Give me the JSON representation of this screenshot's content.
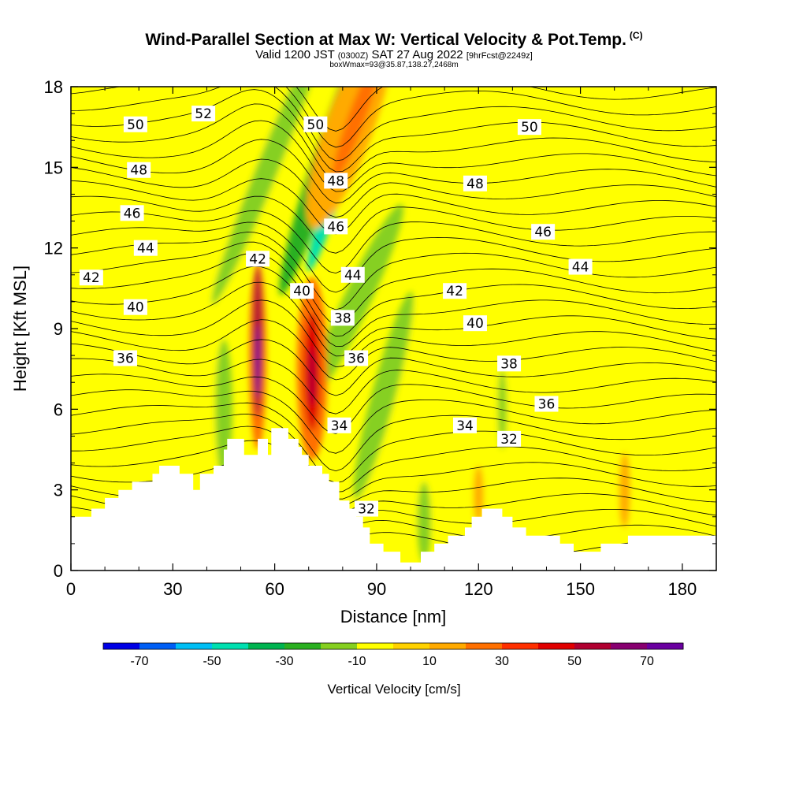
{
  "title": {
    "main": "Wind-Parallel Section at Max W: Vertical Velocity & Pot.Temp.",
    "copyright": "(C)",
    "valid_prefix": "Valid 1200 JST",
    "valid_utc": "(0300Z)",
    "valid_date": "SAT 27 Aug 2022",
    "forecast": "[9hrFcst@2249z]",
    "box_info": "boxWmax=93@35.87,138.27,2468m"
  },
  "chart_data": {
    "type": "heatmap",
    "xlabel": "Distance [nm]",
    "ylabel": "Height [Kft MSL]",
    "xlim": [
      0,
      190
    ],
    "ylim": [
      0,
      18
    ],
    "x_ticks": [
      0,
      30,
      60,
      90,
      120,
      150,
      180
    ],
    "y_ticks": [
      0,
      3,
      6,
      9,
      12,
      15,
      18
    ],
    "colorbar": {
      "label": "Vertical Velocity [cm/s]",
      "tick_labels": [
        "-70",
        "-50",
        "-30",
        "-10",
        "10",
        "30",
        "50",
        "70"
      ],
      "tick_values": [
        -70,
        -50,
        -30,
        -10,
        10,
        30,
        50,
        70
      ],
      "range": [
        -80,
        80
      ],
      "colors": [
        "#0000e6",
        "#005ff5",
        "#00bff5",
        "#00e0b0",
        "#00b450",
        "#2ab020",
        "#86d020",
        "#ffff00",
        "#ffd200",
        "#ffaa00",
        "#ff7000",
        "#ff3000",
        "#e00000",
        "#b00030",
        "#880070",
        "#6a00a0"
      ]
    },
    "contour_labels": [
      {
        "text": "52",
        "x": 39,
        "y": 17.0
      },
      {
        "text": "50",
        "x": 19,
        "y": 16.6
      },
      {
        "text": "50",
        "x": 72,
        "y": 16.6
      },
      {
        "text": "50",
        "x": 135,
        "y": 16.5
      },
      {
        "text": "48",
        "x": 20,
        "y": 14.9
      },
      {
        "text": "48",
        "x": 78,
        "y": 14.5
      },
      {
        "text": "48",
        "x": 119,
        "y": 14.4
      },
      {
        "text": "46",
        "x": 18,
        "y": 13.3
      },
      {
        "text": "46",
        "x": 78,
        "y": 12.8
      },
      {
        "text": "46",
        "x": 139,
        "y": 12.6
      },
      {
        "text": "44",
        "x": 22,
        "y": 12.0
      },
      {
        "text": "44",
        "x": 83,
        "y": 11.0
      },
      {
        "text": "44",
        "x": 150,
        "y": 11.3
      },
      {
        "text": "42",
        "x": 6,
        "y": 10.9
      },
      {
        "text": "42",
        "x": 55,
        "y": 11.6
      },
      {
        "text": "42",
        "x": 113,
        "y": 10.4
      },
      {
        "text": "40",
        "x": 19,
        "y": 9.8
      },
      {
        "text": "40",
        "x": 68,
        "y": 10.4
      },
      {
        "text": "40",
        "x": 119,
        "y": 9.2
      },
      {
        "text": "38",
        "x": 80,
        "y": 9.4
      },
      {
        "text": "38",
        "x": 129,
        "y": 7.7
      },
      {
        "text": "36",
        "x": 16,
        "y": 7.9
      },
      {
        "text": "36",
        "x": 84,
        "y": 7.9
      },
      {
        "text": "36",
        "x": 140,
        "y": 6.2
      },
      {
        "text": "34",
        "x": 79,
        "y": 5.4
      },
      {
        "text": "34",
        "x": 116,
        "y": 5.4
      },
      {
        "text": "32",
        "x": 129,
        "y": 4.9
      },
      {
        "text": "32",
        "x": 87,
        "y": 2.3
      }
    ],
    "terrain_height": [
      [
        0,
        2.0
      ],
      [
        6,
        2.0
      ],
      [
        6,
        2.3
      ],
      [
        10,
        2.3
      ],
      [
        10,
        2.7
      ],
      [
        14,
        2.7
      ],
      [
        14,
        3.0
      ],
      [
        18,
        3.0
      ],
      [
        18,
        3.3
      ],
      [
        24,
        3.3
      ],
      [
        24,
        3.6
      ],
      [
        26,
        3.6
      ],
      [
        26,
        3.9
      ],
      [
        32,
        3.9
      ],
      [
        32,
        3.6
      ],
      [
        36,
        3.6
      ],
      [
        36,
        3.0
      ],
      [
        38,
        3.0
      ],
      [
        38,
        3.6
      ],
      [
        42,
        3.6
      ],
      [
        42,
        3.9
      ],
      [
        45,
        3.9
      ],
      [
        45,
        4.5
      ],
      [
        46,
        4.5
      ],
      [
        46,
        4.9
      ],
      [
        51,
        4.9
      ],
      [
        51,
        4.3
      ],
      [
        55,
        4.3
      ],
      [
        55,
        4.9
      ],
      [
        58,
        4.9
      ],
      [
        58,
        4.3
      ],
      [
        59,
        4.3
      ],
      [
        59,
        5.3
      ],
      [
        64,
        5.3
      ],
      [
        64,
        4.9
      ],
      [
        67,
        4.9
      ],
      [
        67,
        4.6
      ],
      [
        68,
        4.6
      ],
      [
        68,
        4.3
      ],
      [
        70,
        4.3
      ],
      [
        70,
        3.9
      ],
      [
        74,
        3.9
      ],
      [
        74,
        3.6
      ],
      [
        76,
        3.6
      ],
      [
        76,
        3.3
      ],
      [
        79,
        3.3
      ],
      [
        79,
        2.6
      ],
      [
        82,
        2.6
      ],
      [
        82,
        2.3
      ],
      [
        84,
        2.3
      ],
      [
        84,
        2.0
      ],
      [
        86,
        2.0
      ],
      [
        86,
        1.6
      ],
      [
        88,
        1.6
      ],
      [
        88,
        1.0
      ],
      [
        92,
        1.0
      ],
      [
        92,
        0.7
      ],
      [
        97,
        0.7
      ],
      [
        97,
        0.3
      ],
      [
        103,
        0.3
      ],
      [
        103,
        0.7
      ],
      [
        107,
        0.7
      ],
      [
        107,
        1.0
      ],
      [
        111,
        1.0
      ],
      [
        111,
        1.3
      ],
      [
        116,
        1.3
      ],
      [
        116,
        1.6
      ],
      [
        118,
        1.6
      ],
      [
        118,
        2.0
      ],
      [
        121,
        2.0
      ],
      [
        121,
        2.3
      ],
      [
        127,
        2.3
      ],
      [
        127,
        2.0
      ],
      [
        130,
        2.0
      ],
      [
        130,
        1.6
      ],
      [
        134,
        1.6
      ],
      [
        134,
        1.3
      ],
      [
        144,
        1.3
      ],
      [
        144,
        1.0
      ],
      [
        148,
        1.0
      ],
      [
        148,
        0.7
      ],
      [
        156,
        0.7
      ],
      [
        156,
        1.0
      ],
      [
        164,
        1.0
      ],
      [
        164,
        1.3
      ],
      [
        190,
        1.3
      ]
    ]
  }
}
